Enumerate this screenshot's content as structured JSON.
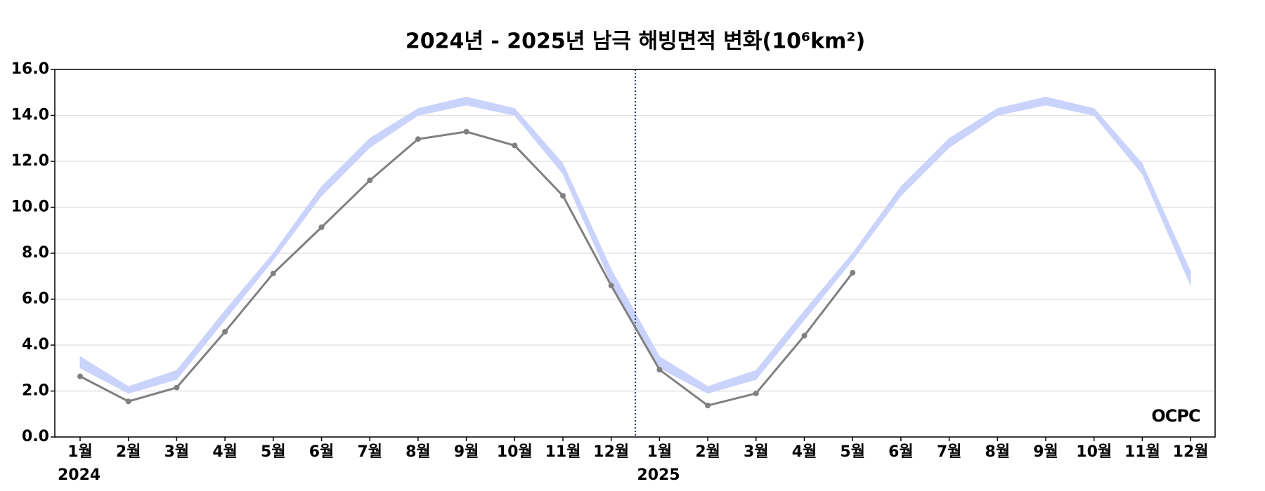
{
  "chart_data": {
    "type": "line",
    "title": "2024년 - 2025년 남극 해빙면적 변화(10⁶km²)",
    "categories": [
      "1월",
      "2월",
      "3월",
      "4월",
      "5월",
      "6월",
      "7월",
      "8월",
      "9월",
      "10월",
      "11월",
      "12월",
      "1월",
      "2월",
      "3월",
      "4월",
      "5월",
      "6월",
      "7월",
      "8월",
      "9월",
      "10월",
      "11월",
      "12월"
    ],
    "year_labels": [
      "2024",
      "2025"
    ],
    "series": [
      {
        "color": "#808080",
        "values": [
          2.64,
          1.55,
          2.15,
          4.58,
          7.12,
          9.13,
          11.17,
          12.97,
          13.29,
          12.69,
          10.5,
          6.59,
          2.93,
          1.37,
          1.9,
          4.41,
          7.15,
          null,
          null,
          null,
          null,
          null,
          null,
          null
        ]
      }
    ],
    "band": {
      "color": "#c9d3fb",
      "lower": [
        3.0,
        1.9,
        2.5,
        5.1,
        7.7,
        10.5,
        12.6,
        14.0,
        14.45,
        14.0,
        11.45,
        6.7,
        3.0,
        1.9,
        2.5,
        5.1,
        7.7,
        10.5,
        12.6,
        14.0,
        14.45,
        14.0,
        11.45,
        6.6
      ],
      "upper": [
        3.5,
        2.2,
        2.9,
        5.5,
        8.0,
        10.9,
        13.0,
        14.3,
        14.8,
        14.3,
        11.9,
        7.3,
        3.5,
        2.2,
        2.9,
        5.5,
        8.0,
        10.9,
        13.0,
        14.3,
        14.8,
        14.3,
        11.9,
        7.2
      ]
    },
    "ylim": [
      0,
      16
    ],
    "yticks": [
      {
        "value": 0,
        "label": "0.0"
      },
      {
        "value": 2,
        "label": "2.0"
      },
      {
        "value": 4,
        "label": "4.0"
      },
      {
        "value": 6,
        "label": "6.0"
      },
      {
        "value": 8,
        "label": "8.0"
      },
      {
        "value": 10,
        "label": "10.0"
      },
      {
        "value": 12,
        "label": "12.0"
      },
      {
        "value": 14,
        "label": "14.0"
      },
      {
        "value": 16,
        "label": "16.0"
      }
    ],
    "grid": true,
    "logo": "OCPC"
  }
}
